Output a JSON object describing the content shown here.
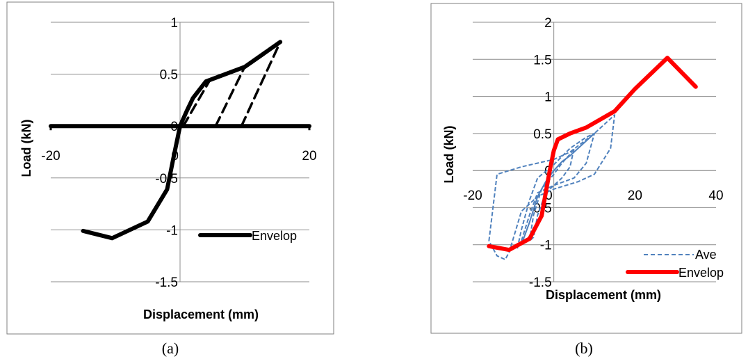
{
  "chart_data": [
    {
      "type": "line",
      "panel_label": "(a)",
      "xlabel": "Displacement (mm)",
      "ylabel": "Load (kN)",
      "xlim": [
        -20,
        20
      ],
      "ylim": [
        -1.5,
        1
      ],
      "xticks": [
        -20,
        0,
        20
      ],
      "xtick_labels": [
        "-20",
        "0",
        "20"
      ],
      "yticks": [
        1,
        0.5,
        0,
        -0.5,
        -1,
        -1.5
      ],
      "ytick_labels": [
        "1",
        "0.5",
        "0",
        "-0.5",
        "-1",
        "-1.5"
      ],
      "grid": "horizontal",
      "legend_position": "bottom-right",
      "series": [
        {
          "name": "Envelop",
          "color": "#000000",
          "style": "solid",
          "legend": true,
          "x": [
            -15,
            -10.5,
            -5,
            -2,
            -1,
            0,
            1,
            2,
            4,
            10,
            15.5
          ],
          "y": [
            -1.01,
            -1.08,
            -0.92,
            -0.61,
            -0.3,
            0,
            0.14,
            0.27,
            0.43,
            0.57,
            0.81
          ]
        },
        {
          "name": "",
          "color": "#000000",
          "style": "solid",
          "legend": false,
          "x": [
            -20,
            20
          ],
          "y": [
            0,
            0
          ]
        },
        {
          "name": "",
          "color": "#000000",
          "style": "dashed",
          "legend": false,
          "x": [
            0.5,
            4.5
          ],
          "y": [
            0,
            0.43
          ]
        },
        {
          "name": "",
          "color": "#000000",
          "style": "dashed",
          "legend": false,
          "x": [
            5.5,
            10
          ],
          "y": [
            0,
            0.57
          ]
        },
        {
          "name": "",
          "color": "#000000",
          "style": "dashed",
          "legend": false,
          "x": [
            9.5,
            15.5
          ],
          "y": [
            0,
            0.81
          ]
        }
      ]
    },
    {
      "type": "line",
      "panel_label": "(b)",
      "xlabel": "Displacement (mm)",
      "ylabel": "Load (kN)",
      "xlim": [
        -20,
        40
      ],
      "ylim": [
        -1.5,
        2
      ],
      "xticks": [
        -20,
        0,
        20,
        40
      ],
      "xtick_labels": [
        "-20",
        "0",
        "20",
        "40"
      ],
      "yticks": [
        2,
        1.5,
        1,
        0.5,
        0,
        -0.5,
        -1,
        -1.5
      ],
      "ytick_labels": [
        "2",
        "1.5",
        "1",
        "0.5",
        "0",
        "-0.5",
        "-1",
        "-1.5"
      ],
      "grid": "horizontal",
      "legend_position": "bottom-right",
      "series": [
        {
          "name": "Ave",
          "color": "#4f81bd",
          "style": "dashed",
          "legend": true,
          "loops": [
            {
              "x": [
                -6,
                -5,
                -3,
                0,
                2,
                4,
                5,
                4,
                2,
                0,
                -2,
                -4,
                -5,
                -6
              ],
              "y": [
                -0.95,
                -0.6,
                -0.25,
                -0.05,
                0.1,
                0.22,
                0.3,
                0.05,
                -0.1,
                -0.2,
                -0.3,
                -0.6,
                -0.9,
                -0.95
              ]
            },
            {
              "x": [
                -9,
                -8,
                -6,
                -4,
                0,
                4,
                8,
                10,
                8,
                5,
                0,
                -4,
                -6,
                -8,
                -9
              ],
              "y": [
                -1.05,
                -0.8,
                -0.4,
                -0.1,
                0.08,
                0.3,
                0.45,
                0.5,
                0.1,
                -0.1,
                -0.2,
                -0.3,
                -0.6,
                -0.95,
                -1.05
              ]
            },
            {
              "x": [
                -16,
                -14,
                -8,
                -4,
                0,
                4,
                10,
                15,
                14,
                10,
                6,
                0,
                -4,
                -8,
                -11,
                -12,
                -14,
                -16
              ],
              "y": [
                -0.95,
                -0.05,
                0.05,
                0.1,
                0.15,
                0.25,
                0.5,
                0.75,
                0.3,
                -0.05,
                -0.15,
                -0.25,
                -0.35,
                -0.55,
                -1.1,
                -1.2,
                -1.15,
                -0.95
              ]
            }
          ]
        },
        {
          "name": "",
          "color": "#4f81bd",
          "style": "solid",
          "legend": false,
          "x": [
            -8,
            -6,
            -4,
            -2,
            0,
            2,
            4,
            6,
            8,
            10
          ],
          "y": [
            -1.0,
            -0.7,
            -0.35,
            -0.15,
            0,
            0.12,
            0.2,
            0.3,
            0.4,
            0.5
          ]
        },
        {
          "name": "Envelop",
          "color": "#ff0000",
          "style": "solid",
          "legend": true,
          "x": [
            -16,
            -11,
            -6,
            -3,
            -2,
            -1,
            0,
            1,
            4,
            8,
            15,
            20,
            28,
            35
          ],
          "y": [
            -1.02,
            -1.07,
            -0.92,
            -0.61,
            -0.3,
            0,
            0.27,
            0.42,
            0.5,
            0.58,
            0.8,
            1.1,
            1.52,
            1.13
          ]
        }
      ]
    }
  ]
}
